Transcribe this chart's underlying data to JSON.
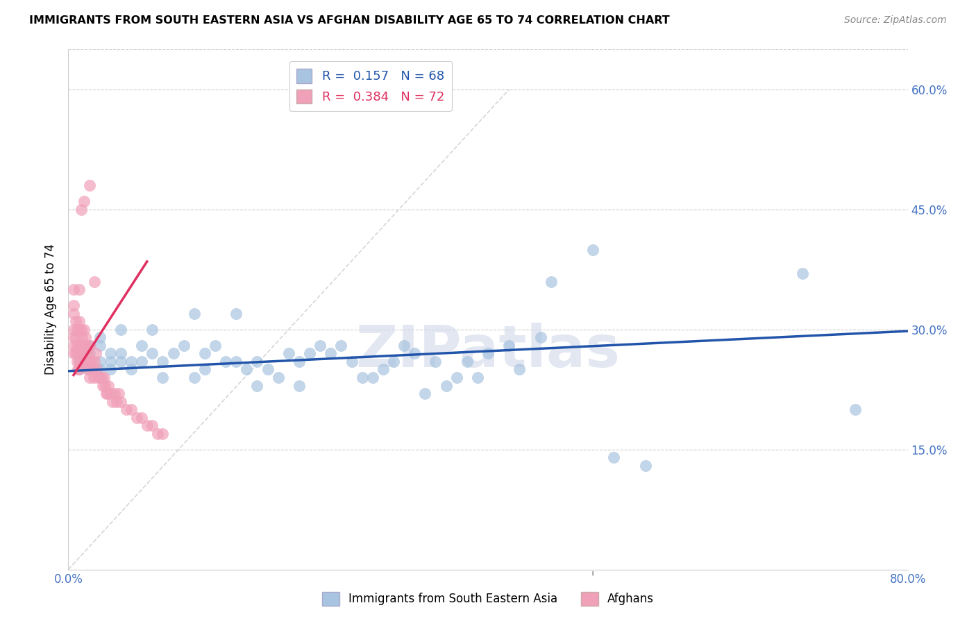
{
  "title": "IMMIGRANTS FROM SOUTH EASTERN ASIA VS AFGHAN DISABILITY AGE 65 TO 74 CORRELATION CHART",
  "source": "Source: ZipAtlas.com",
  "ylabel": "Disability Age 65 to 74",
  "xlim": [
    0.0,
    0.8
  ],
  "ylim": [
    0.0,
    0.65
  ],
  "yticks": [
    0.15,
    0.3,
    0.45,
    0.6
  ],
  "ytick_labels": [
    "15.0%",
    "30.0%",
    "45.0%",
    "60.0%"
  ],
  "xtick_labels": [
    "0.0%",
    "80.0%"
  ],
  "xtick_positions": [
    0.0,
    0.8
  ],
  "blue_R": 0.157,
  "blue_N": 68,
  "pink_R": 0.384,
  "pink_N": 72,
  "blue_color": "#a8c4e0",
  "pink_color": "#f0a0b8",
  "blue_line_color": "#2255aa",
  "pink_line_color": "#e03060",
  "axis_color": "#4472c4",
  "grid_color": "#cccccc",
  "diag_color": "#cccccc",
  "watermark_text": "ZIPatlas",
  "blue_scatter_x": [
    0.01,
    0.01,
    0.02,
    0.02,
    0.02,
    0.03,
    0.03,
    0.03,
    0.03,
    0.04,
    0.04,
    0.04,
    0.05,
    0.05,
    0.05,
    0.06,
    0.06,
    0.07,
    0.07,
    0.08,
    0.08,
    0.09,
    0.09,
    0.1,
    0.11,
    0.12,
    0.12,
    0.13,
    0.13,
    0.14,
    0.15,
    0.16,
    0.16,
    0.17,
    0.18,
    0.18,
    0.19,
    0.2,
    0.21,
    0.22,
    0.22,
    0.23,
    0.24,
    0.25,
    0.26,
    0.27,
    0.28,
    0.29,
    0.3,
    0.31,
    0.32,
    0.33,
    0.34,
    0.35,
    0.36,
    0.37,
    0.38,
    0.39,
    0.4,
    0.42,
    0.43,
    0.45,
    0.46,
    0.5,
    0.52,
    0.55,
    0.7,
    0.75
  ],
  "blue_scatter_y": [
    0.25,
    0.26,
    0.25,
    0.27,
    0.28,
    0.25,
    0.26,
    0.28,
    0.29,
    0.25,
    0.26,
    0.27,
    0.26,
    0.27,
    0.3,
    0.25,
    0.26,
    0.26,
    0.28,
    0.27,
    0.3,
    0.24,
    0.26,
    0.27,
    0.28,
    0.24,
    0.32,
    0.25,
    0.27,
    0.28,
    0.26,
    0.26,
    0.32,
    0.25,
    0.23,
    0.26,
    0.25,
    0.24,
    0.27,
    0.26,
    0.23,
    0.27,
    0.28,
    0.27,
    0.28,
    0.26,
    0.24,
    0.24,
    0.25,
    0.26,
    0.28,
    0.27,
    0.22,
    0.26,
    0.23,
    0.24,
    0.26,
    0.24,
    0.27,
    0.28,
    0.25,
    0.29,
    0.36,
    0.4,
    0.14,
    0.13,
    0.37,
    0.2
  ],
  "pink_scatter_x": [
    0.005,
    0.005,
    0.005,
    0.005,
    0.005,
    0.005,
    0.005,
    0.007,
    0.007,
    0.007,
    0.008,
    0.008,
    0.008,
    0.009,
    0.009,
    0.01,
    0.01,
    0.01,
    0.01,
    0.01,
    0.012,
    0.012,
    0.012,
    0.013,
    0.013,
    0.014,
    0.015,
    0.015,
    0.015,
    0.016,
    0.016,
    0.017,
    0.018,
    0.018,
    0.019,
    0.02,
    0.02,
    0.021,
    0.022,
    0.023,
    0.024,
    0.025,
    0.026,
    0.027,
    0.028,
    0.03,
    0.032,
    0.033,
    0.034,
    0.035,
    0.036,
    0.037,
    0.038,
    0.04,
    0.042,
    0.044,
    0.046,
    0.048,
    0.05,
    0.055,
    0.06,
    0.065,
    0.07,
    0.075,
    0.08,
    0.085,
    0.09,
    0.01,
    0.012,
    0.015,
    0.02,
    0.025
  ],
  "pink_scatter_y": [
    0.27,
    0.28,
    0.29,
    0.3,
    0.32,
    0.33,
    0.35,
    0.27,
    0.29,
    0.31,
    0.26,
    0.28,
    0.3,
    0.25,
    0.27,
    0.25,
    0.26,
    0.28,
    0.3,
    0.31,
    0.26,
    0.28,
    0.3,
    0.27,
    0.29,
    0.28,
    0.26,
    0.28,
    0.3,
    0.27,
    0.29,
    0.28,
    0.25,
    0.27,
    0.26,
    0.24,
    0.26,
    0.28,
    0.26,
    0.25,
    0.24,
    0.26,
    0.27,
    0.25,
    0.24,
    0.24,
    0.24,
    0.23,
    0.24,
    0.23,
    0.22,
    0.22,
    0.23,
    0.22,
    0.21,
    0.22,
    0.21,
    0.22,
    0.21,
    0.2,
    0.2,
    0.19,
    0.19,
    0.18,
    0.18,
    0.17,
    0.17,
    0.35,
    0.45,
    0.46,
    0.48,
    0.36
  ],
  "pink_line_x": [
    0.005,
    0.075
  ],
  "pink_line_y": [
    0.243,
    0.385
  ],
  "blue_line_x": [
    0.0,
    0.8
  ],
  "blue_line_y": [
    0.248,
    0.298
  ]
}
